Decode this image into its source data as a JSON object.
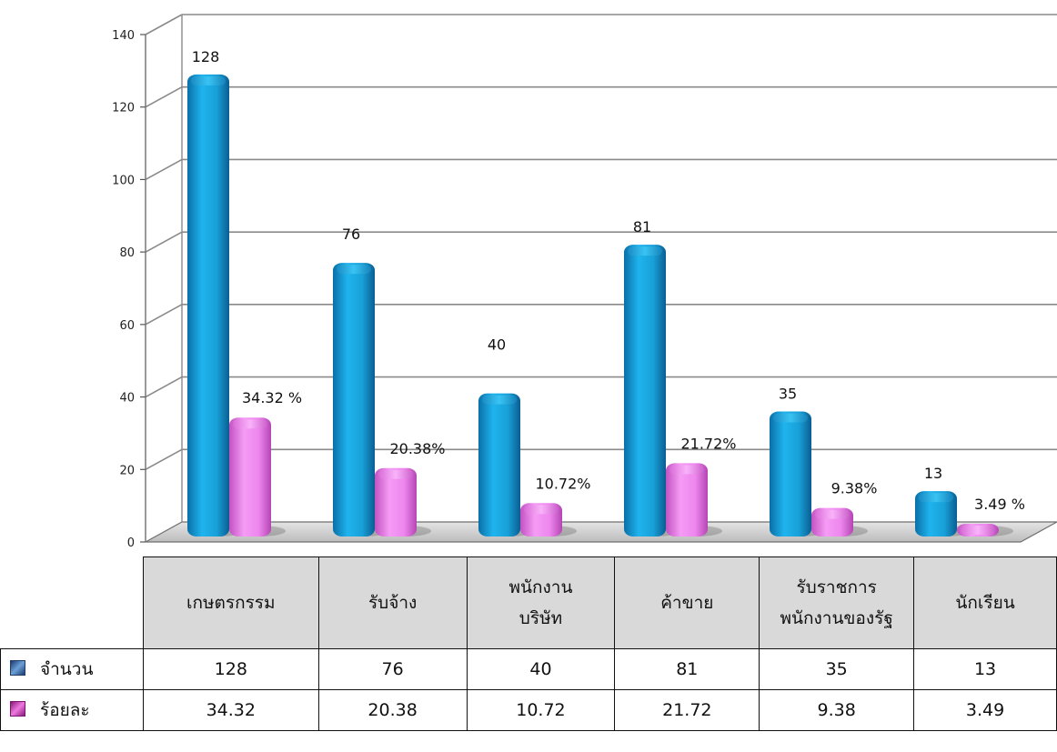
{
  "chart_data": {
    "type": "bar",
    "categories": [
      "เกษตรกรรม",
      "รับจ้าง",
      "พนักงาน\nบริษัท",
      "ค้าขาย",
      "รับราชการ\nพนักงานของรัฐ",
      "นักเรียน"
    ],
    "series": [
      {
        "name": "จำนวน",
        "values": [
          128,
          76,
          40,
          81,
          35,
          13
        ],
        "color": "#17a5dd",
        "labels": [
          "128",
          "76",
          "40",
          "81",
          "35",
          "13"
        ]
      },
      {
        "name": "ร้อยละ",
        "values": [
          34.32,
          20.38,
          10.72,
          21.72,
          9.38,
          3.49
        ],
        "color": "#ee82ee",
        "labels": [
          "34.32 %",
          "20.38%",
          "10.72%",
          "21.72%",
          "9.38%",
          "3.49 %"
        ]
      }
    ],
    "y_ticks": [
      "0",
      "20",
      "40",
      "60",
      "80",
      "100",
      "120",
      "140"
    ],
    "ylim": [
      0,
      140
    ],
    "grid": true,
    "legend": "data-table"
  },
  "table": {
    "headers": [
      "เกษตรกรรม",
      "รับจ้าง",
      "พนักงาน\nบริษัท",
      "ค้าขาย",
      "รับราชการ\nพนักงานของรัฐ",
      "นักเรียน"
    ],
    "rows": [
      {
        "label": "จำนวน",
        "cells": [
          "128",
          "76",
          "40",
          "81",
          "35",
          "13"
        ]
      },
      {
        "label": "ร้อยละ",
        "cells": [
          "34.32",
          "20.38",
          "10.72",
          "21.72",
          "9.38",
          "3.49"
        ]
      }
    ]
  }
}
